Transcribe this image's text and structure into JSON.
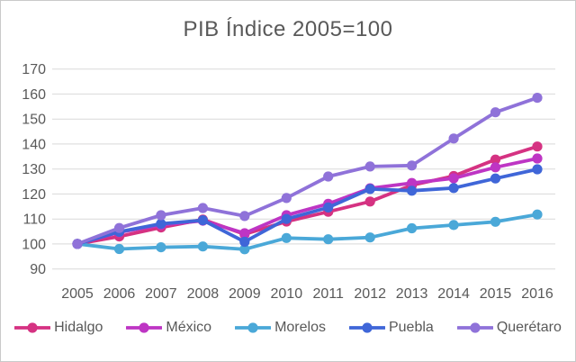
{
  "title": "PIB Índice 2005=100",
  "colors": {
    "text": "#595959",
    "gridline": "#d9d9d9",
    "frame_border": "#c9c9c9",
    "background": "#ffffff"
  },
  "chart_data": {
    "type": "line",
    "title": "PIB Índice 2005=100",
    "x": [
      2005,
      2006,
      2007,
      2008,
      2009,
      2010,
      2011,
      2012,
      2013,
      2014,
      2015,
      2016
    ],
    "series": [
      {
        "name": "Hidalgo",
        "color": "#d53282",
        "values": [
          100,
          103.0,
          106.6,
          109.8,
          103.9,
          109.0,
          112.9,
          117.0,
          123.5,
          127.2,
          133.8,
          139.0
        ]
      },
      {
        "name": "México",
        "color": "#be35c4",
        "values": [
          100,
          104.7,
          107.6,
          109.3,
          104.3,
          111.5,
          116.1,
          122.3,
          124.4,
          126.3,
          130.7,
          134.2
        ]
      },
      {
        "name": "Morelos",
        "color": "#4aa8d8",
        "values": [
          100,
          98.0,
          98.7,
          99.0,
          97.9,
          102.4,
          101.9,
          102.6,
          106.3,
          107.6,
          108.9,
          111.8
        ]
      },
      {
        "name": "Puebla",
        "color": "#3f66d8",
        "values": [
          100,
          104.9,
          108.1,
          109.5,
          100.9,
          110.0,
          114.6,
          122.0,
          121.3,
          122.4,
          126.2,
          129.9
        ]
      },
      {
        "name": "Querétaro",
        "color": "#8f72d9",
        "values": [
          100,
          106.4,
          111.5,
          114.4,
          111.2,
          118.4,
          127.0,
          131.0,
          131.4,
          142.2,
          152.7,
          158.5
        ]
      }
    ],
    "ylim": [
      90,
      170
    ],
    "ytick_step": 10,
    "grid": "horizontal-only",
    "legend_position": "bottom",
    "marker": "circle",
    "xlabel": "",
    "ylabel": ""
  }
}
